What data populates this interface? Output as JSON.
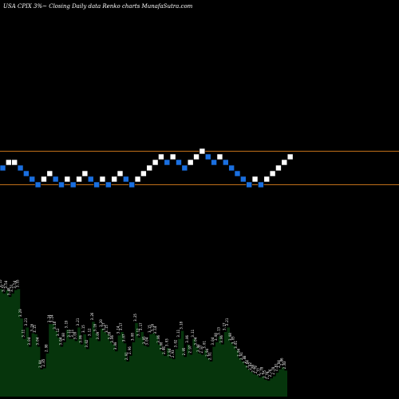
{
  "header": {
    "title": "USA CPIX  3%~  Closing Daily data  Renko  charts MunafaSutra.com"
  },
  "colors": {
    "background": "#000000",
    "up_brick": "#ffffff",
    "down_brick": "#1a6fe0",
    "brick_border": "#000000",
    "reference_line": "#c0701a",
    "volume_fill": "#06350c",
    "volume_text": "#ffffff"
  },
  "chart_data": [
    {
      "type": "renko",
      "title": "USA CPIX  3%~  Closing Daily data  Renko  charts MunafaSutra.com",
      "bricks": [
        {
          "dir": "down",
          "level": 5
        },
        {
          "dir": "up",
          "level": 6
        },
        {
          "dir": "up",
          "level": 6
        },
        {
          "dir": "down",
          "level": 5
        },
        {
          "dir": "down",
          "level": 4
        },
        {
          "dir": "down",
          "level": 3
        },
        {
          "dir": "down",
          "level": 2
        },
        {
          "dir": "up",
          "level": 3
        },
        {
          "dir": "up",
          "level": 4
        },
        {
          "dir": "down",
          "level": 3
        },
        {
          "dir": "down",
          "level": 2
        },
        {
          "dir": "up",
          "level": 3
        },
        {
          "dir": "down",
          "level": 2
        },
        {
          "dir": "up",
          "level": 3
        },
        {
          "dir": "up",
          "level": 4
        },
        {
          "dir": "down",
          "level": 3
        },
        {
          "dir": "down",
          "level": 2
        },
        {
          "dir": "up",
          "level": 3
        },
        {
          "dir": "down",
          "level": 2
        },
        {
          "dir": "up",
          "level": 3
        },
        {
          "dir": "up",
          "level": 4
        },
        {
          "dir": "down",
          "level": 3
        },
        {
          "dir": "down",
          "level": 2
        },
        {
          "dir": "up",
          "level": 3
        },
        {
          "dir": "up",
          "level": 4
        },
        {
          "dir": "up",
          "level": 5
        },
        {
          "dir": "up",
          "level": 6
        },
        {
          "dir": "up",
          "level": 7
        },
        {
          "dir": "down",
          "level": 6
        },
        {
          "dir": "up",
          "level": 7
        },
        {
          "dir": "down",
          "level": 6
        },
        {
          "dir": "down",
          "level": 5
        },
        {
          "dir": "up",
          "level": 6
        },
        {
          "dir": "up",
          "level": 7
        },
        {
          "dir": "up",
          "level": 8
        },
        {
          "dir": "down",
          "level": 7
        },
        {
          "dir": "down",
          "level": 6
        },
        {
          "dir": "up",
          "level": 7
        },
        {
          "dir": "down",
          "level": 6
        },
        {
          "dir": "down",
          "level": 5
        },
        {
          "dir": "down",
          "level": 4
        },
        {
          "dir": "down",
          "level": 3
        },
        {
          "dir": "down",
          "level": 2
        },
        {
          "dir": "up",
          "level": 3
        },
        {
          "dir": "down",
          "level": 2
        },
        {
          "dir": "up",
          "level": 3
        },
        {
          "dir": "up",
          "level": 4
        },
        {
          "dir": "up",
          "level": 5
        },
        {
          "dir": "up",
          "level": 6
        },
        {
          "dir": "up",
          "level": 7
        }
      ],
      "reference_levels": [
        8.5,
        2.5
      ]
    },
    {
      "type": "area",
      "labels": [
        "3.55",
        "3.51",
        "3.54",
        "3.48",
        "3.51",
        "3.54",
        "3.55",
        "3.29",
        "3.11",
        "3.21",
        "3.04",
        "3.16",
        "3.15",
        "3.04",
        "2.84",
        "2.85",
        "2.98",
        "3.24",
        "3.24",
        "3.18",
        "3.12",
        "3.04",
        "3.08",
        "3.19",
        "3.11",
        "3.11",
        "3.09",
        "3.21",
        "3.06",
        "3.15",
        "3.02",
        "3.12",
        "3.26",
        "3.16",
        "3.09",
        "3.20",
        "3.17",
        "3.15",
        "3.09",
        "3.06",
        "3.00",
        "3.14",
        "3.17",
        "3.07",
        "2.91",
        "2.96",
        "3.08",
        "3.25",
        "3.12",
        "3.17",
        "3.05",
        "3.04",
        "3.15",
        "3.16",
        "3.14",
        "3.06",
        "3.00",
        "2.96",
        "3.03",
        "2.94",
        "2.93",
        "3.02",
        "3.11",
        "3.18",
        "2.95",
        "3.06",
        "2.97",
        "3.11",
        "3.04",
        "2.98",
        "2.97",
        "3.01",
        "2.94",
        "2.91",
        "3.04",
        "3.08",
        "3.13",
        "3.06",
        "3.17",
        "3.21",
        "3.08",
        "3.05",
        "3.01",
        "2.94",
        "2.91",
        "2.88",
        "2.84",
        "2.82",
        "2.80",
        "2.79",
        "2.77",
        "2.78",
        "2.75",
        "2.74",
        "2.76",
        "2.78",
        "2.81",
        "2.84",
        "2.86",
        "2.83"
      ],
      "values": [
        3.55,
        3.51,
        3.54,
        3.48,
        3.51,
        3.54,
        3.55,
        3.29,
        3.11,
        3.21,
        3.04,
        3.16,
        3.15,
        3.04,
        2.84,
        2.85,
        2.98,
        3.24,
        3.24,
        3.18,
        3.12,
        3.04,
        3.08,
        3.19,
        3.11,
        3.11,
        3.09,
        3.21,
        3.06,
        3.15,
        3.02,
        3.12,
        3.26,
        3.16,
        3.09,
        3.2,
        3.17,
        3.15,
        3.09,
        3.06,
        3.0,
        3.14,
        3.17,
        3.07,
        2.91,
        2.96,
        3.08,
        3.25,
        3.12,
        3.17,
        3.05,
        3.04,
        3.15,
        3.16,
        3.14,
        3.06,
        3.0,
        2.96,
        3.03,
        2.94,
        2.93,
        3.02,
        3.11,
        3.18,
        2.95,
        3.06,
        2.97,
        3.11,
        3.04,
        2.98,
        2.97,
        3.01,
        2.94,
        2.91,
        3.04,
        3.08,
        3.13,
        3.06,
        3.17,
        3.21,
        3.08,
        3.05,
        3.01,
        2.94,
        2.91,
        2.88,
        2.84,
        2.82,
        2.8,
        2.79,
        2.77,
        2.78,
        2.75,
        2.74,
        2.76,
        2.78,
        2.81,
        2.84,
        2.86,
        2.83
      ],
      "ylim": [
        2.6,
        3.6
      ]
    }
  ]
}
